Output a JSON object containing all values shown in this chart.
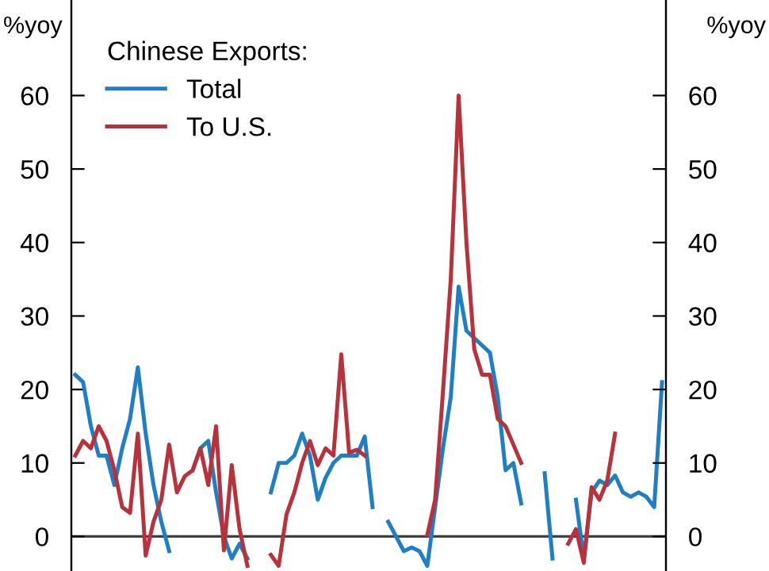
{
  "chart_data": {
    "type": "line",
    "categories": [
      null,
      null,
      null,
      null,
      null,
      null,
      null,
      null,
      null,
      null,
      null,
      null,
      null,
      null,
      null,
      null,
      null,
      null,
      null,
      null,
      null,
      null,
      null,
      null,
      null,
      null,
      null,
      null,
      null,
      null,
      null,
      null,
      null,
      null,
      null,
      null,
      null,
      null,
      null,
      null,
      null,
      null,
      null,
      null,
      null,
      null,
      null,
      null,
      null,
      null,
      null,
      null,
      null,
      null,
      null,
      null,
      null,
      null,
      null,
      null,
      null,
      null,
      null,
      null,
      null,
      null,
      null,
      null,
      null,
      null,
      null,
      null,
      null,
      null,
      null,
      null
    ],
    "series": [
      {
        "name": "Total",
        "color": "#1f7fc4",
        "values": [
          22,
          21,
          15,
          11,
          11,
          7,
          12,
          16,
          23,
          14,
          7,
          2,
          -2,
          null,
          null,
          9,
          12,
          13,
          6,
          0,
          -3,
          -1,
          -3,
          null,
          null,
          6,
          10,
          10,
          11,
          14,
          11,
          5,
          8,
          10,
          11,
          11,
          11,
          13.6,
          4,
          null,
          2,
          0,
          -2,
          -1.5,
          -2,
          -4,
          4,
          12,
          19,
          34,
          28,
          27,
          26,
          25,
          19,
          9,
          10,
          4.5,
          null,
          null,
          8.6,
          -3,
          null,
          null,
          5,
          -3,
          6,
          7.6,
          7,
          8.3,
          6,
          5.4,
          6,
          5.4,
          4,
          21
        ]
      },
      {
        "name": "To U.S.",
        "color": "#b8323c",
        "values": [
          11,
          13,
          12,
          15,
          13,
          9,
          4,
          3.2,
          14,
          -2.6,
          2,
          5,
          12.5,
          6,
          8.2,
          9,
          12,
          7,
          15,
          -1.9,
          9.7,
          1,
          -4,
          null,
          null,
          -2.5,
          -4,
          3,
          6,
          10,
          13,
          9.7,
          12,
          11,
          24.8,
          11.4,
          11.8,
          11,
          null,
          null,
          null,
          null,
          null,
          null,
          null,
          0.2,
          5,
          19.7,
          35,
          60,
          40,
          25.5,
          22,
          22,
          16,
          15,
          12.5,
          10,
          null,
          null,
          null,
          null,
          null,
          -1,
          1,
          -3.6,
          6.7,
          5,
          7.6,
          14,
          null,
          null,
          null,
          null,
          null,
          null
        ]
      }
    ],
    "ylim": [
      -4.7,
      73
    ],
    "yticks": [
      0,
      10,
      20,
      30,
      40,
      50,
      60
    ],
    "y2lim": [
      -4.7,
      73
    ],
    "y2ticks": [
      0,
      10,
      20,
      30,
      40,
      50,
      60
    ],
    "ylabel": "%yoy",
    "y2label": "%yoy",
    "legend_title": "Chinese Exports:",
    "legend": "top left",
    "ref_lines": [
      {
        "axis": "y",
        "value": 0,
        "color": "#404040"
      }
    ],
    "tick_labels": "y",
    "grid": false,
    "line_style": "solid",
    "marker": "none"
  }
}
